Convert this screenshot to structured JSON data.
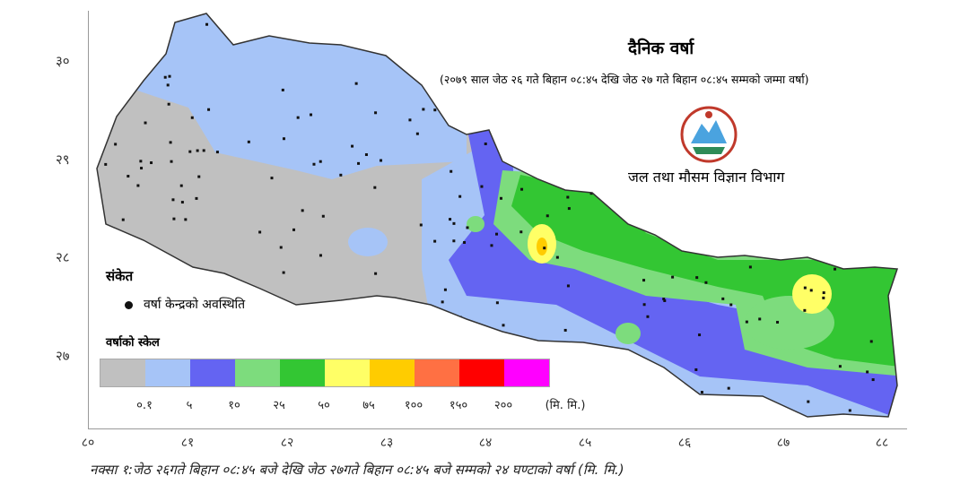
{
  "title": "दैनिक वर्षा",
  "subtitle": "(२०७९ साल  जेठ २६  गते बिहान ०८:४५ देखि जेठ २७ गते बिहान ०८:४५ सम्मको जम्मा वर्षा)",
  "department": "जल तथा मौसम विज्ञान विभाग",
  "legend": {
    "title": "संकेत",
    "station_label": "वर्षा केन्द्रको अवस्थिति",
    "scale_title": "वर्षाको स्केल",
    "unit": "(मि. मि.)",
    "colors": [
      "#c0c0c0",
      "#a6c4f7",
      "#6464f2",
      "#7ddc7d",
      "#33c633",
      "#ffff66",
      "#ffcc00",
      "#ff7043",
      "#ff0000",
      "#ff00ff"
    ],
    "breaks": [
      "०.१",
      "५",
      "१०",
      "२५",
      "५०",
      "७५",
      "१००",
      "१५०",
      "२००"
    ]
  },
  "lat_ticks": [
    "३०",
    "२९",
    "२८",
    "२७"
  ],
  "lon_ticks": [
    "८०",
    "८१",
    "८२",
    "८३",
    "८४",
    "८५",
    "८६",
    "८७",
    "८८"
  ],
  "caption": "नक्सा १:जेठ २६गते बिहान ०८:४५ बजे देखि जेठ २७गते बिहान ०८:४५ बजे सम्मको २४ घण्टाको वर्षा (मि. मि.)"
}
